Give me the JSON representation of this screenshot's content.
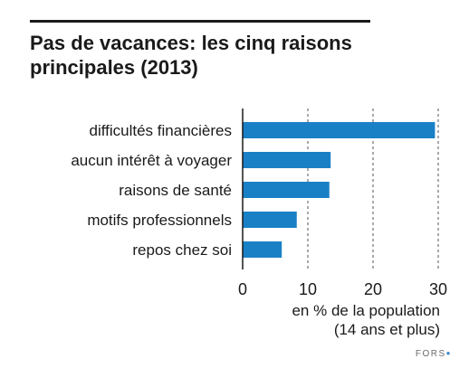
{
  "title": "Pas de vacances: les cinq raisons principales (2013)",
  "source": "FORS",
  "colors": {
    "bar": "#1a80c6",
    "axis": "#1a1a1a",
    "grid": "#555555"
  },
  "chart_data": {
    "type": "bar",
    "orientation": "horizontal",
    "title": "Pas de vacances: les cinq raisons principales (2013)",
    "categories": [
      "difficultés financières",
      "aucun intérêt à voyager",
      "raisons de santé",
      "motifs professionnels",
      "repos chez soi"
    ],
    "values": [
      29.5,
      13.5,
      13.3,
      8.3,
      6.0
    ],
    "xlabel": "en % de la population (14 ans et plus)",
    "xlabel_lines": [
      "en % de la population",
      "(14 ans et plus)"
    ],
    "xlim": [
      0,
      30
    ],
    "xticks": [
      0,
      10,
      20,
      30
    ],
    "grid": "vertical dashed",
    "legend": "none"
  }
}
